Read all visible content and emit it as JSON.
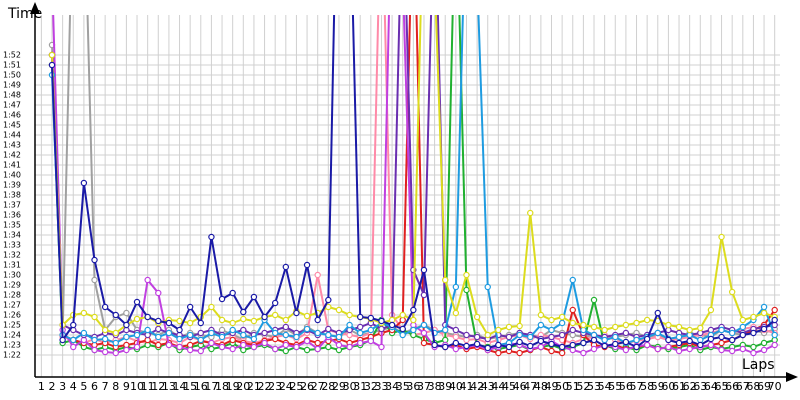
{
  "chart_data": {
    "type": "line",
    "ylabel": "Time",
    "xlabel": "Laps",
    "xlim": [
      0.4,
      70.5
    ],
    "ylim": [
      79.8,
      116
    ],
    "grid": true,
    "marker": "hollow-circle",
    "xticks": [
      1,
      2,
      3,
      4,
      5,
      6,
      7,
      8,
      9,
      10,
      11,
      12,
      13,
      14,
      15,
      16,
      17,
      18,
      19,
      20,
      21,
      22,
      23,
      24,
      25,
      26,
      27,
      28,
      29,
      30,
      31,
      32,
      33,
      34,
      35,
      36,
      37,
      38,
      39,
      40,
      41,
      42,
      43,
      44,
      45,
      46,
      47,
      48,
      49,
      50,
      51,
      52,
      53,
      54,
      55,
      56,
      57,
      58,
      59,
      60,
      61,
      62,
      63,
      64,
      65,
      66,
      67,
      68,
      69,
      70
    ],
    "yticks": [
      {
        "value": 82,
        "label": "1:22"
      },
      {
        "value": 83,
        "label": "1:23"
      },
      {
        "value": 84,
        "label": "1:24"
      },
      {
        "value": 85,
        "label": "1:25"
      },
      {
        "value": 86,
        "label": "1:26"
      },
      {
        "value": 87,
        "label": "1:27"
      },
      {
        "value": 88,
        "label": "1:28"
      },
      {
        "value": 89,
        "label": "1:29"
      },
      {
        "value": 90,
        "label": "1:30"
      },
      {
        "value": 91,
        "label": "1:31"
      },
      {
        "value": 92,
        "label": "1:32"
      },
      {
        "value": 93,
        "label": "1:33"
      },
      {
        "value": 94,
        "label": "1:34"
      },
      {
        "value": 95,
        "label": "1:35"
      },
      {
        "value": 96,
        "label": "1:36"
      },
      {
        "value": 97,
        "label": "1:37"
      },
      {
        "value": 98,
        "label": "1:38"
      },
      {
        "value": 99,
        "label": "1:39"
      },
      {
        "value": 100,
        "label": "1:40"
      },
      {
        "value": 101,
        "label": "1:41"
      },
      {
        "value": 102,
        "label": "1:42"
      },
      {
        "value": 103,
        "label": "1:43"
      },
      {
        "value": 104,
        "label": "1:44"
      },
      {
        "value": 105,
        "label": "1:45"
      },
      {
        "value": 106,
        "label": "1:46"
      },
      {
        "value": 107,
        "label": "1:47"
      },
      {
        "value": 108,
        "label": "1:48"
      },
      {
        "value": 109,
        "label": "1:49"
      },
      {
        "value": 110,
        "label": "1:50"
      },
      {
        "value": 111,
        "label": "1:51"
      },
      {
        "value": 112,
        "label": "1:52"
      }
    ],
    "x": [
      1,
      2,
      3,
      4,
      5,
      6,
      7,
      8,
      9,
      10,
      11,
      12,
      13,
      14,
      15,
      16,
      17,
      18,
      19,
      20,
      21,
      22,
      23,
      24,
      25,
      26,
      27,
      28,
      29,
      30,
      31,
      32,
      33,
      34,
      35,
      36,
      37,
      38,
      39,
      40,
      41,
      42,
      43,
      44,
      45,
      46,
      47,
      48,
      49,
      50,
      51,
      52,
      53,
      54,
      55,
      56,
      57,
      58,
      59,
      60,
      61,
      62,
      63,
      64,
      65,
      66,
      67,
      68,
      69,
      70
    ],
    "series": [
      {
        "color": "#a0a0a0",
        "values": [
          null,
          113,
          84,
          130,
          130,
          89.5,
          84.5,
          85.8,
          86.2,
          84.5,
          84.2,
          84,
          84.5,
          83.8,
          84.2,
          84,
          83.8,
          84.5,
          84,
          83.6,
          84.2,
          84,
          83.8,
          84.6,
          84,
          84.8,
          84.2,
          84,
          83.8,
          84.5,
          84,
          84.2,
          84.5,
          84.8,
          84.2,
          84.6,
          85,
          84.5,
          84.2,
          84,
          83.8,
          84,
          83.6,
          83.8,
          84,
          84.2,
          84,
          83.8,
          84.5,
          84.2,
          84,
          83.8,
          84,
          83.5,
          83.8,
          84,
          84.2,
          83.8,
          84,
          83.6,
          83.8,
          84.2,
          84,
          83.8,
          84.5,
          84.2,
          84,
          84.5,
          84.2,
          84.6
        ]
      },
      {
        "color": "#ff8aa8",
        "values": [
          null,
          111,
          83.8,
          83.5,
          83.2,
          83.6,
          83.2,
          83.5,
          83.8,
          83.4,
          83.2,
          83.6,
          83.5,
          83.2,
          83.8,
          83.5,
          83.2,
          83.6,
          83.8,
          83.4,
          83.2,
          83.5,
          83.8,
          84,
          83.6,
          84.2,
          90,
          84.5,
          84.2,
          84,
          83.8,
          84.2,
          130,
          86,
          84.5,
          84,
          84.2,
          84.5,
          84,
          83.8,
          83.5,
          83.6,
          83.2,
          83.5,
          83.8,
          84,
          83.6,
          84,
          83.8,
          83.5,
          83.2,
          83.6,
          83.8,
          84,
          83.5,
          83.2,
          83.4,
          83.6,
          83.8,
          83.5,
          83.6,
          83.8,
          84,
          84.2,
          84.5,
          84.2,
          84.6,
          84.8,
          84.5,
          84.2
        ]
      },
      {
        "color": "#20b030",
        "values": [
          null,
          111,
          83.2,
          83.5,
          82.8,
          82.5,
          82.8,
          82.5,
          82.8,
          82.6,
          83,
          82.8,
          83.2,
          82.5,
          82.8,
          83,
          82.6,
          82.8,
          83.2,
          82.5,
          82.8,
          83,
          82.6,
          82.4,
          82.8,
          82.5,
          82.6,
          82.8,
          82.5,
          82.8,
          83,
          83.5,
          85.5,
          84.2,
          84.5,
          84,
          83.6,
          83.2,
          83.5,
          130,
          88.5,
          83,
          82.8,
          82.6,
          82.8,
          83,
          82.5,
          82.8,
          83,
          82.6,
          82.8,
          83.2,
          87.5,
          83,
          82.6,
          82.8,
          82.5,
          83,
          82.8,
          82.6,
          82.8,
          83,
          82.5,
          82.8,
          82.6,
          82.8,
          83,
          82.8,
          83.2,
          83.5
        ]
      },
      {
        "color": "#e02020",
        "values": [
          null,
          112,
          84,
          83.5,
          83.2,
          83,
          83.2,
          82.8,
          83,
          83.2,
          83.5,
          83,
          83.2,
          82.8,
          83,
          83.4,
          83.2,
          83,
          83.5,
          83.2,
          83,
          83.4,
          83.6,
          83.2,
          83,
          83.5,
          83.2,
          83.4,
          83.6,
          83.2,
          83.5,
          83.8,
          84.2,
          84.5,
          85.5,
          130,
          83.2,
          83,
          82.8,
          83,
          82.6,
          82.8,
          82.5,
          82.2,
          82.4,
          82.2,
          82.5,
          82.8,
          82.4,
          82.2,
          86.5,
          84,
          83,
          82.8,
          83,
          82.6,
          82.8,
          83,
          82.6,
          82.8,
          83,
          83.2,
          82.8,
          83,
          83.2,
          83.5,
          84,
          84.5,
          85,
          86.5
        ]
      },
      {
        "color": "#c040e0",
        "values": [
          null,
          120,
          84.5,
          82.8,
          83.5,
          82.5,
          82.3,
          82.2,
          82.5,
          82.8,
          89.5,
          88.2,
          83,
          82.8,
          82.5,
          82.4,
          83.2,
          82.8,
          82.6,
          83,
          82.8,
          83.2,
          82.6,
          83,
          82.8,
          83.4,
          82.6,
          83.8,
          83,
          82.8,
          83.2,
          83.4,
          82.8,
          130,
          120,
          85,
          84.2,
          82.8,
          83,
          82.6,
          82.8,
          83,
          82.5,
          82.8,
          83.2,
          83,
          82.6,
          82.8,
          83.4,
          82.8,
          82.5,
          82.2,
          82.6,
          83,
          82.8,
          82.5,
          82.9,
          83,
          82.6,
          82.8,
          82.4,
          82.6,
          82.8,
          83,
          82.5,
          82.4,
          82.6,
          82.2,
          82.5,
          83
        ]
      },
      {
        "color": "#6a2fb0",
        "values": [
          null,
          112,
          85,
          84.5,
          84,
          83.8,
          84.2,
          84,
          84.5,
          84.2,
          84,
          84.6,
          84.2,
          84,
          83.8,
          84.2,
          84.5,
          84,
          84.2,
          84.5,
          84,
          84.2,
          84.5,
          84.8,
          84.2,
          84.5,
          84,
          84.6,
          84.2,
          84.5,
          84.8,
          85.2,
          84.6,
          85,
          130,
          90.5,
          88,
          130,
          85,
          84.5,
          84,
          83.8,
          83.6,
          84,
          83.8,
          84.2,
          84,
          83.6,
          83.8,
          84,
          84.5,
          84.2,
          84,
          83.8,
          84,
          84.2,
          83.8,
          84,
          84.2,
          84.5,
          84.2,
          84,
          84.2,
          84.5,
          84.8,
          84.5,
          84.2,
          84.6,
          84.8,
          85
        ]
      },
      {
        "color": "#1e9be0",
        "values": [
          null,
          110,
          84,
          83.5,
          84.2,
          83.5,
          83.6,
          83.2,
          83.8,
          84,
          84.5,
          83.8,
          84.2,
          83.6,
          84,
          83.5,
          84.2,
          83.8,
          84.5,
          84,
          83.6,
          85.5,
          84.2,
          84,
          83.8,
          84.6,
          84.2,
          84,
          83.8,
          85,
          84.2,
          84.5,
          85.2,
          84.8,
          84,
          84.5,
          85,
          84.2,
          84.5,
          88.8,
          130,
          120,
          88.8,
          83,
          83.2,
          84,
          83.8,
          85,
          84.5,
          85.2,
          89.5,
          84.5,
          84,
          83.5,
          83.8,
          83.2,
          83.5,
          83.8,
          84.2,
          83.6,
          83.8,
          84,
          83.5,
          84,
          84.5,
          84.2,
          84.8,
          85.5,
          86.8,
          84
        ]
      },
      {
        "color": "#dcdc1e",
        "values": [
          null,
          112,
          85,
          86,
          86.2,
          85.8,
          84.5,
          84.2,
          85,
          85.6,
          85.8,
          85.2,
          85.5,
          85.4,
          85.2,
          85.8,
          86.8,
          85.5,
          85.2,
          85.6,
          85.4,
          85.8,
          86,
          85.5,
          86.4,
          85.9,
          86.2,
          86.8,
          86.5,
          86,
          85.8,
          85.6,
          85.2,
          85.5,
          86,
          85.5,
          130,
          120,
          89.5,
          86.2,
          90,
          85.8,
          84,
          84.5,
          84.8,
          84.9,
          96.2,
          86,
          85.5,
          85.8,
          85.2,
          85,
          84.8,
          84.5,
          84.8,
          85,
          85.2,
          85.5,
          85.4,
          85,
          84.8,
          84.5,
          84.7,
          86.5,
          93.8,
          88.3,
          85.5,
          85.8,
          86.2,
          85.8
        ]
      },
      {
        "color": "#1a1aa6",
        "values": [
          null,
          111,
          83.5,
          85,
          99.2,
          91.5,
          86.8,
          86,
          85,
          87.3,
          85.8,
          85.4,
          85.2,
          84.5,
          86.8,
          85.2,
          93.8,
          87.6,
          88.2,
          86.3,
          87.8,
          85.8,
          87.2,
          90.8,
          86.2,
          91,
          85.5,
          87.5,
          140,
          130,
          85.8,
          85.7,
          85.4,
          85,
          84.6,
          86.5,
          90.5,
          83,
          82.8,
          83.2,
          82.9,
          83.1,
          82.7,
          83,
          82.8,
          83.3,
          82.9,
          83.4,
          83.1,
          82.8,
          83,
          83.2,
          83.5,
          82.9,
          83.1,
          83.3,
          82.8,
          83.6,
          86.2,
          83.5,
          83.2,
          83.4,
          83,
          83.6,
          83.8,
          83.5,
          84,
          84.2,
          84.6,
          85.5
        ]
      }
    ]
  }
}
